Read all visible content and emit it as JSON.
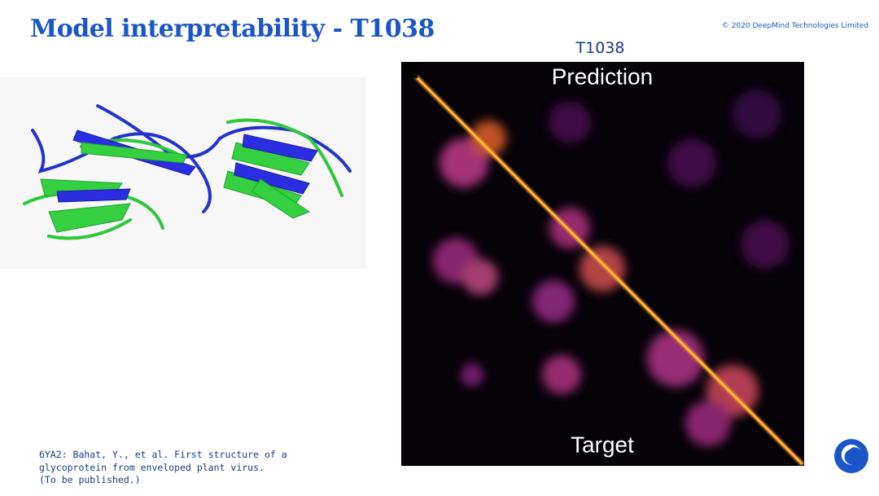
{
  "header": {
    "title": "Model interpretability - T1038",
    "copyright": "© 2020 DeepMind Technologies Limited"
  },
  "figure": {
    "title": "T1038",
    "top_label": "Prediction",
    "bottom_label": "Target"
  },
  "citation": {
    "lines": [
      "6YA2: Bahat, Y., et al. First structure of a",
      "glycoprotein from enveloped plant virus.",
      "(To be published.)"
    ]
  }
}
